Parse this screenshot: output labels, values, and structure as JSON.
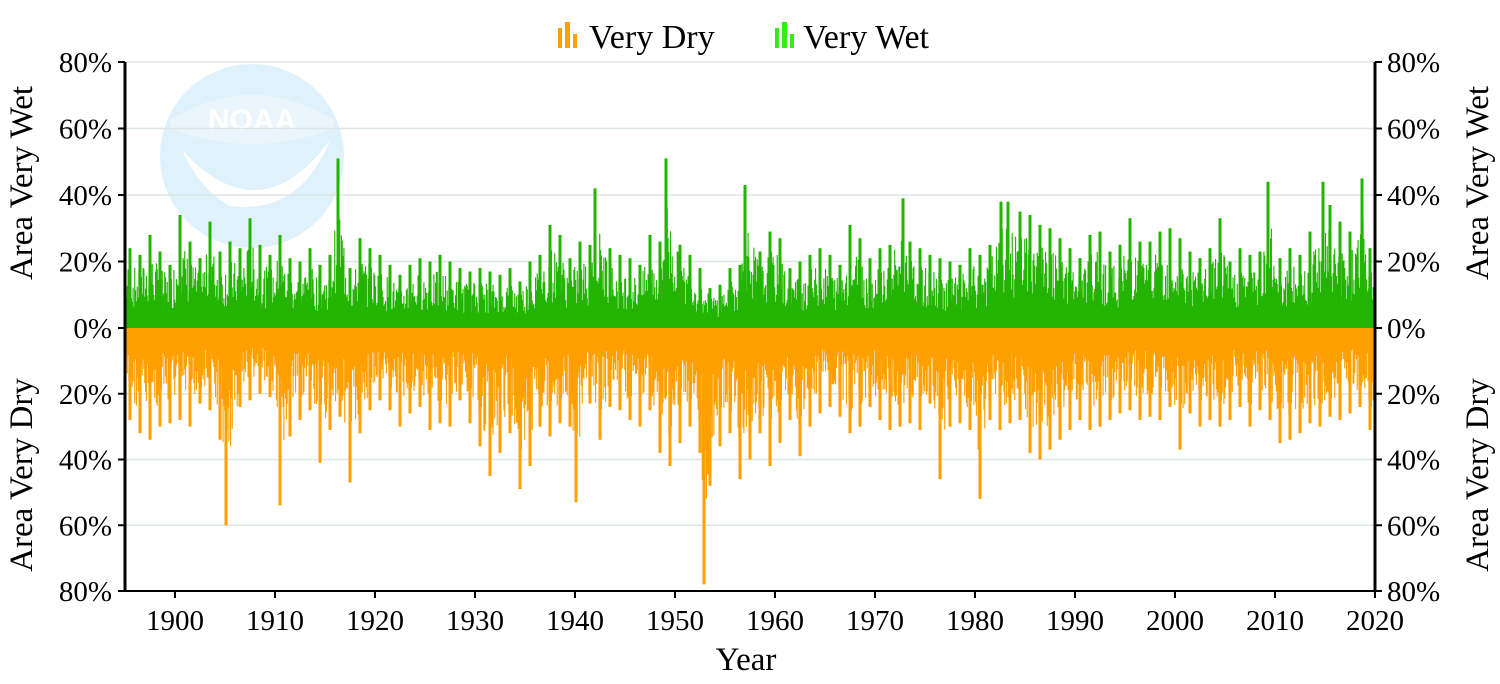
{
  "chart_data": {
    "type": "bar",
    "xlabel": "Year",
    "ylabel_top_left": "Area Very Wet",
    "ylabel_bottom_left": "Area Very Dry",
    "ylabel_top_right": "Area Very Wet",
    "ylabel_bottom_right": "Area Very Dry",
    "xlim": [
      1895,
      2020
    ],
    "ylim_wet": [
      0,
      80
    ],
    "ylim_dry": [
      0,
      80
    ],
    "x_ticks": [
      "1900",
      "1910",
      "1920",
      "1930",
      "1940",
      "1950",
      "1960",
      "1970",
      "1980",
      "1990",
      "2000",
      "2010",
      "2020"
    ],
    "y_ticks_wet": [
      "80%",
      "60%",
      "40%",
      "20%",
      "0%"
    ],
    "y_ticks_dry": [
      "20%",
      "40%",
      "60%",
      "80%"
    ],
    "grid": true,
    "legend_position": "top-center",
    "colors": {
      "very_dry": "#ff9f00",
      "very_wet": "#22b400",
      "legend_wet": "#33ee11",
      "grid": "#dde6e6",
      "watermark": "#d8eef8"
    },
    "watermark": "NOAA",
    "series": [
      {
        "name": "Very Dry",
        "x": [
          1895.5,
          1896.5,
          1897.5,
          1898.5,
          1899.5,
          1900.5,
          1901.5,
          1902.5,
          1903.5,
          1904.5,
          1905.1,
          1906.5,
          1907.5,
          1908.5,
          1909.5,
          1910.5,
          1911.5,
          1912.5,
          1913.5,
          1914.5,
          1915.5,
          1916.5,
          1917.5,
          1918.5,
          1919.5,
          1920.5,
          1921.5,
          1922.5,
          1923.5,
          1924.5,
          1925.5,
          1926.5,
          1927.5,
          1928.5,
          1929.5,
          1930.5,
          1931.5,
          1932.5,
          1933.5,
          1934.5,
          1935.5,
          1936.5,
          1937.5,
          1938.5,
          1939.5,
          1940.1,
          1941.5,
          1942.5,
          1943.5,
          1944.5,
          1945.5,
          1946.5,
          1947.5,
          1948.5,
          1949.5,
          1950.5,
          1951.5,
          1952.5,
          1952.9,
          1953.5,
          1954.5,
          1955.5,
          1956.5,
          1957.5,
          1958.5,
          1959.5,
          1960.5,
          1961.5,
          1962.5,
          1963.5,
          1964.5,
          1965.5,
          1966.5,
          1967.5,
          1968.5,
          1969.5,
          1970.5,
          1971.5,
          1972.5,
          1973.5,
          1974.5,
          1975.5,
          1976.5,
          1977.5,
          1978.5,
          1979.5,
          1980.5,
          1981.5,
          1982.5,
          1983.5,
          1984.5,
          1985.5,
          1986.5,
          1987.5,
          1988.5,
          1989.5,
          1990.5,
          1991.5,
          1992.5,
          1993.5,
          1994.5,
          1995.5,
          1996.5,
          1997.5,
          1998.5,
          1999.5,
          2000.5,
          2001.5,
          2002.5,
          2003.5,
          2004.5,
          2005.5,
          2006.5,
          2007.5,
          2008.5,
          2009.5,
          2010.5,
          2011.5,
          2012.5,
          2013.5,
          2014.5,
          2015.5,
          2016.5,
          2017.5,
          2018.5,
          2019.5
        ],
        "values": [
          28,
          32,
          34,
          30,
          29,
          28,
          30,
          23,
          25,
          34,
          60,
          24,
          22,
          20,
          21,
          54,
          33,
          28,
          25,
          41,
          31,
          27,
          47,
          32,
          25,
          22,
          25,
          30,
          26,
          24,
          31,
          29,
          30,
          22,
          29,
          36,
          45,
          38,
          32,
          49,
          42,
          30,
          33,
          29,
          30,
          53,
          23,
          34,
          24,
          25,
          28,
          30,
          25,
          38,
          42,
          35,
          30,
          38,
          78,
          48,
          36,
          32,
          46,
          40,
          32,
          42,
          35,
          28,
          39,
          30,
          26,
          24,
          27,
          32,
          30,
          24,
          28,
          31,
          30,
          29,
          31,
          23,
          46,
          30,
          29,
          31,
          52,
          28,
          31,
          29,
          28,
          38,
          40,
          37,
          34,
          31,
          28,
          31,
          30,
          28,
          26,
          25,
          28,
          27,
          28,
          24,
          37,
          26,
          30,
          28,
          30,
          28,
          24,
          30,
          25,
          28,
          35,
          34,
          32,
          29,
          30,
          27,
          28,
          26,
          24,
          31
        ]
      },
      {
        "name": "Very Wet",
        "x": [
          1895.5,
          1896.5,
          1897.5,
          1898.5,
          1899.5,
          1900.5,
          1901.5,
          1902.5,
          1903.5,
          1904.5,
          1905.5,
          1906.5,
          1907.5,
          1908.5,
          1909.5,
          1910.5,
          1911.5,
          1912.5,
          1913.5,
          1914.5,
          1915.5,
          1916.3,
          1917.5,
          1918.5,
          1919.5,
          1920.5,
          1921.5,
          1922.5,
          1923.5,
          1924.5,
          1925.5,
          1926.5,
          1927.5,
          1928.5,
          1929.5,
          1930.5,
          1931.5,
          1932.5,
          1933.5,
          1934.5,
          1935.5,
          1936.5,
          1937.5,
          1938.5,
          1939.5,
          1940.5,
          1941.5,
          1942.0,
          1943.5,
          1944.5,
          1945.5,
          1946.5,
          1947.5,
          1948.5,
          1949.1,
          1950.5,
          1951.5,
          1952.5,
          1953.5,
          1954.5,
          1955.5,
          1956.5,
          1957.0,
          1958.5,
          1959.5,
          1960.5,
          1961.5,
          1962.5,
          1963.5,
          1964.5,
          1965.5,
          1966.5,
          1967.5,
          1968.5,
          1969.5,
          1970.5,
          1971.5,
          1972.8,
          1973.5,
          1974.5,
          1975.5,
          1976.5,
          1977.5,
          1978.5,
          1979.5,
          1980.5,
          1981.5,
          1982.6,
          1983.3,
          1984.5,
          1985.5,
          1986.5,
          1987.5,
          1988.5,
          1989.5,
          1990.5,
          1991.5,
          1992.5,
          1993.5,
          1994.5,
          1995.5,
          1996.5,
          1997.5,
          1998.5,
          1999.5,
          2000.5,
          2001.5,
          2002.5,
          2003.5,
          2004.5,
          2005.5,
          2006.5,
          2007.5,
          2008.5,
          2009.3,
          2010.5,
          2011.5,
          2012.5,
          2013.5,
          2014.8,
          2015.5,
          2016.5,
          2017.5,
          2018.7,
          2019.5
        ],
        "values": [
          24,
          22,
          28,
          23,
          19,
          34,
          26,
          21,
          32,
          23,
          26,
          24,
          33,
          25,
          22,
          28,
          21,
          20,
          24,
          19,
          22,
          51,
          18,
          27,
          24,
          22,
          19,
          16,
          19,
          21,
          20,
          22,
          20,
          18,
          17,
          18,
          17,
          16,
          18,
          14,
          20,
          22,
          31,
          28,
          21,
          26,
          25,
          42,
          24,
          22,
          21,
          19,
          28,
          26,
          51,
          25,
          22,
          18,
          12,
          13,
          18,
          19,
          43,
          23,
          29,
          27,
          18,
          20,
          22,
          24,
          22,
          19,
          31,
          27,
          21,
          24,
          25,
          39,
          26,
          24,
          22,
          21,
          20,
          19,
          24,
          22,
          25,
          38,
          38,
          35,
          34,
          31,
          30,
          27,
          24,
          21,
          28,
          29,
          23,
          25,
          33,
          26,
          26,
          29,
          30,
          27,
          23,
          21,
          24,
          33,
          20,
          24,
          22,
          23,
          44,
          21,
          24,
          22,
          29,
          44,
          37,
          32,
          29,
          45,
          24
        ]
      }
    ]
  }
}
